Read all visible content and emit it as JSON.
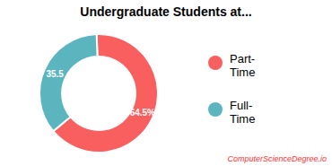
{
  "chart_data": {
    "type": "donut",
    "title": "Undergraduate Students at...",
    "categories": [
      "Part-\nTime",
      "Full-\nTime"
    ],
    "values": [
      64.5,
      35.5
    ],
    "value_labels": [
      "64.5%",
      "35.5"
    ],
    "data_labels": true,
    "colors": [
      "#f95f5f",
      "#5ab5bf"
    ],
    "legend": "right",
    "annotations": [
      {
        "text": "ComputerScienceDegree.io",
        "color": "#ff3333"
      }
    ]
  }
}
